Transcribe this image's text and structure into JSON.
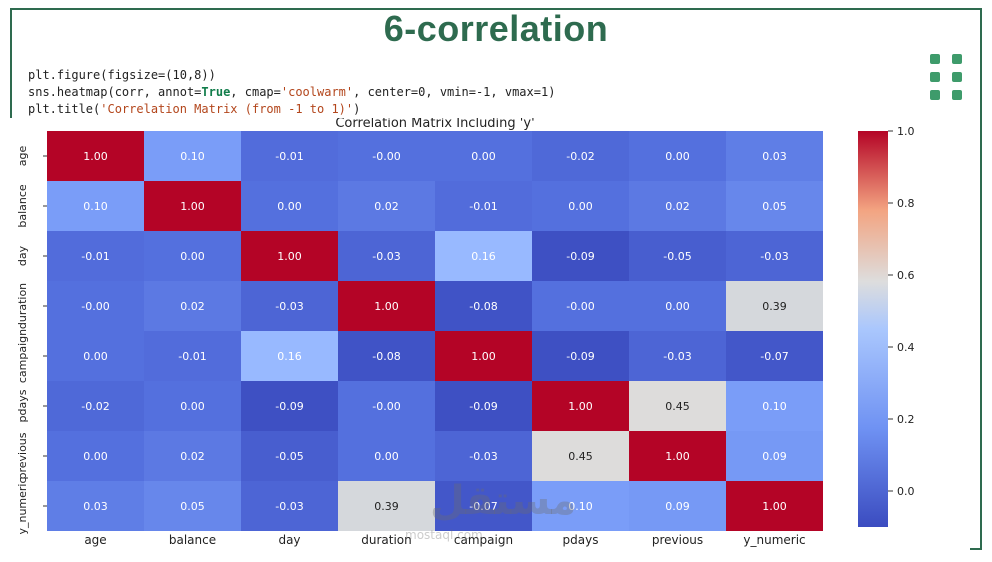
{
  "slide": {
    "title": "6-correlation",
    "code": {
      "line1_fn": "plt.figure(figsize=(10,8))",
      "line2_a": "sns.heatmap(corr, annot=",
      "line2_true": "True",
      "line2_b": ", cmap=",
      "line2_cmap": "'coolwarm'",
      "line2_c": ", center=0, vmin=-1, vmax=1)",
      "line3_a": "plt.title(",
      "line3_str": "'Correlation Matrix (from -1 to 1)'",
      "line3_b": ")"
    },
    "watermark": "مستقل",
    "watermark_sub": "mostaql.com"
  },
  "chart_data": {
    "type": "heatmap",
    "title": "Correlation Matrix Including 'y'",
    "labels": [
      "age",
      "balance",
      "day",
      "duration",
      "campaign",
      "pdays",
      "previous",
      "y_numeric"
    ],
    "matrix": [
      [
        1.0,
        0.1,
        -0.01,
        -0.0,
        0.0,
        -0.02,
        0.0,
        0.03
      ],
      [
        0.1,
        1.0,
        0.0,
        0.02,
        -0.01,
        0.0,
        0.02,
        0.05
      ],
      [
        -0.01,
        0.0,
        1.0,
        -0.03,
        0.16,
        -0.09,
        -0.05,
        -0.03
      ],
      [
        -0.0,
        0.02,
        -0.03,
        1.0,
        -0.08,
        -0.0,
        0.0,
        0.39
      ],
      [
        0.0,
        -0.01,
        0.16,
        -0.08,
        1.0,
        -0.09,
        -0.03,
        -0.07
      ],
      [
        -0.02,
        0.0,
        -0.09,
        -0.0,
        -0.09,
        1.0,
        0.45,
        0.1
      ],
      [
        0.0,
        0.02,
        -0.05,
        0.0,
        -0.03,
        0.45,
        1.0,
        0.09
      ],
      [
        0.03,
        0.05,
        -0.03,
        0.39,
        -0.07,
        0.1,
        0.09,
        1.0
      ]
    ],
    "annotations": [
      [
        "1.00",
        "0.10",
        "-0.01",
        "-0.00",
        "0.00",
        "-0.02",
        "0.00",
        "0.03"
      ],
      [
        "0.10",
        "1.00",
        "0.00",
        "0.02",
        "-0.01",
        "0.00",
        "0.02",
        "0.05"
      ],
      [
        "-0.01",
        "0.00",
        "1.00",
        "-0.03",
        "0.16",
        "-0.09",
        "-0.05",
        "-0.03"
      ],
      [
        "-0.00",
        "0.02",
        "-0.03",
        "1.00",
        "-0.08",
        "-0.00",
        "0.00",
        "0.39"
      ],
      [
        "0.00",
        "-0.01",
        "0.16",
        "-0.08",
        "1.00",
        "-0.09",
        "-0.03",
        "-0.07"
      ],
      [
        "-0.02",
        "0.00",
        "-0.09",
        "-0.00",
        "-0.09",
        "1.00",
        "0.45",
        "0.10"
      ],
      [
        "0.00",
        "0.02",
        "-0.05",
        "0.00",
        "-0.03",
        "0.45",
        "1.00",
        "0.09"
      ],
      [
        "0.03",
        "0.05",
        "-0.03",
        "0.39",
        "-0.07",
        "0.10",
        "0.09",
        "1.00"
      ]
    ],
    "colorbar": {
      "vmin": -0.1,
      "vmax": 1.0,
      "ticks": [
        1.0,
        0.8,
        0.6,
        0.4,
        0.2,
        0.0
      ],
      "tick_labels": [
        "1.0",
        "0.8",
        "0.6",
        "0.4",
        "0.2",
        "0.0"
      ]
    },
    "cmap": "coolwarm",
    "colors": {
      "low": "#3b4cc0",
      "mid": "#dddddd",
      "high": "#b40426"
    }
  }
}
